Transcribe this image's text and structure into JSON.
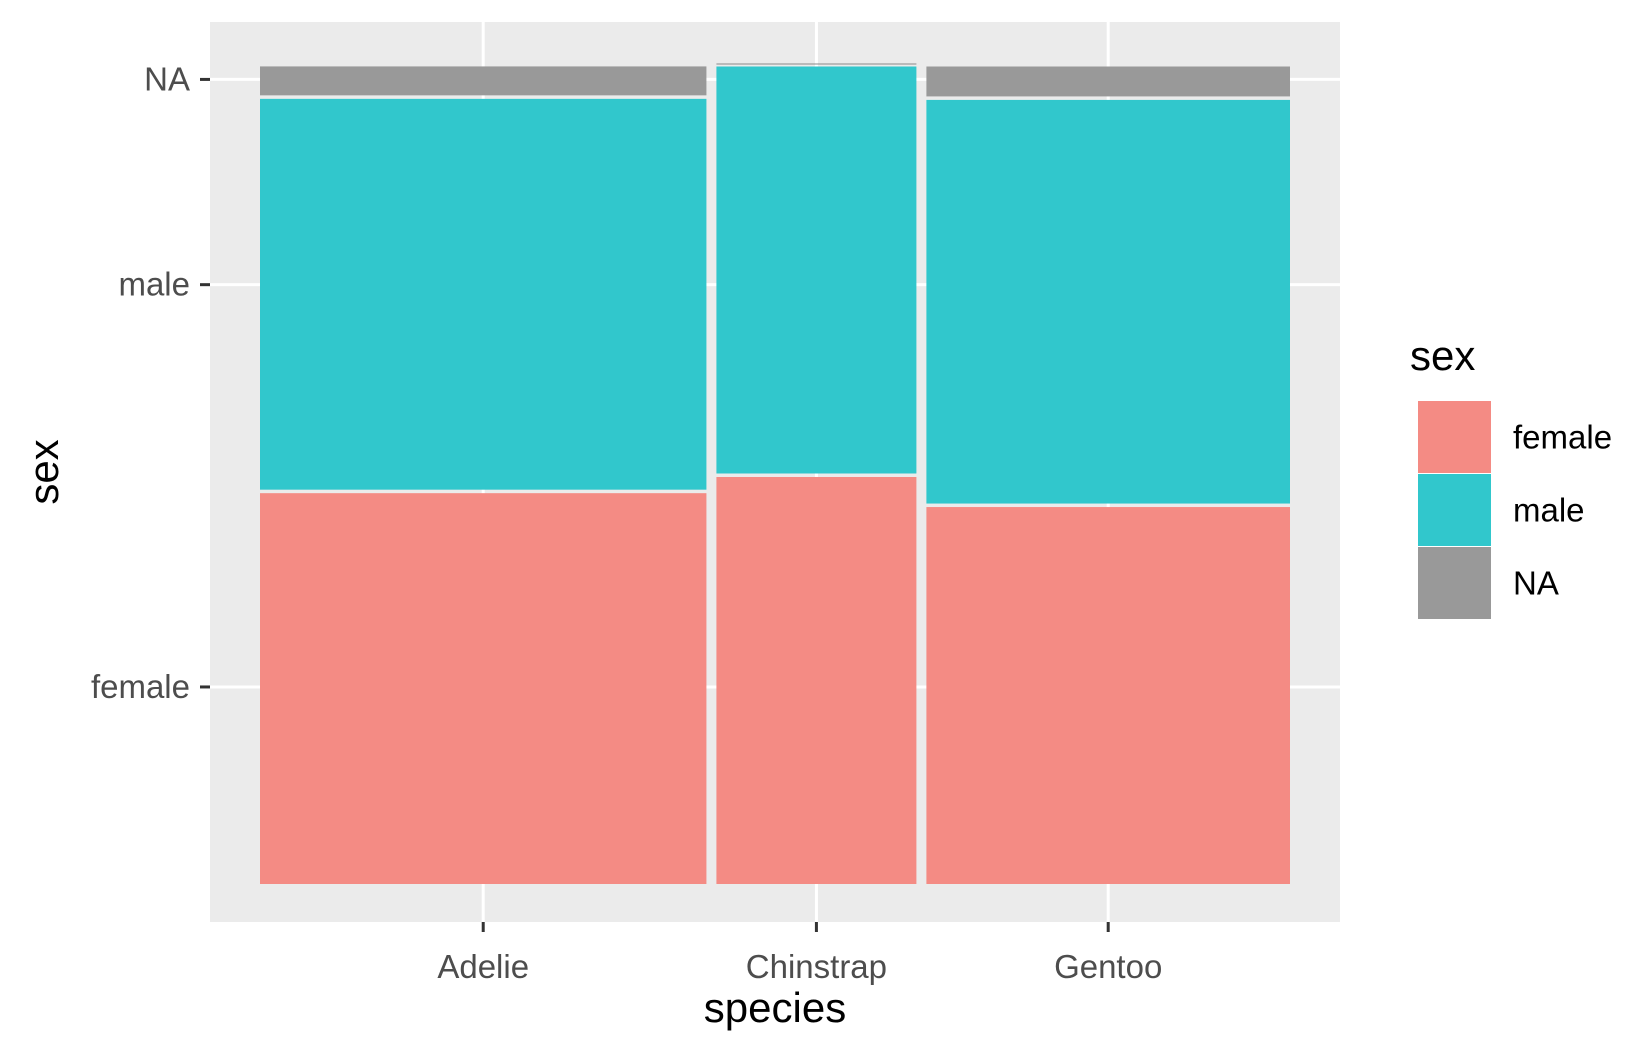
{
  "chart_data": {
    "type": "mosaic",
    "xlabel": "species",
    "ylabel": "sex",
    "categories": [
      "Adelie",
      "Chinstrap",
      "Gentoo"
    ],
    "column_proportions": [
      0.442,
      0.198,
      0.36
    ],
    "y_levels": [
      "female",
      "male",
      "NA"
    ],
    "series": [
      {
        "name": "female",
        "values": [
          0.4803,
          0.5,
          0.4634
        ]
      },
      {
        "name": "male",
        "values": [
          0.4803,
          0.5,
          0.4959
        ]
      },
      {
        "name": "NA",
        "values": [
          0.0395,
          0.0,
          0.0407
        ]
      }
    ],
    "y_tick_positions": [
      0.24,
      0.73,
      0.98
    ],
    "legend": {
      "title": "sex",
      "position": "right",
      "entries": [
        "female",
        "male",
        "NA"
      ]
    },
    "colors": {
      "female": "#f48b84",
      "male": "#31c7cc",
      "NA": "#999999",
      "panel": "#ebebeb",
      "grid": "#ffffff"
    },
    "grid": true
  }
}
